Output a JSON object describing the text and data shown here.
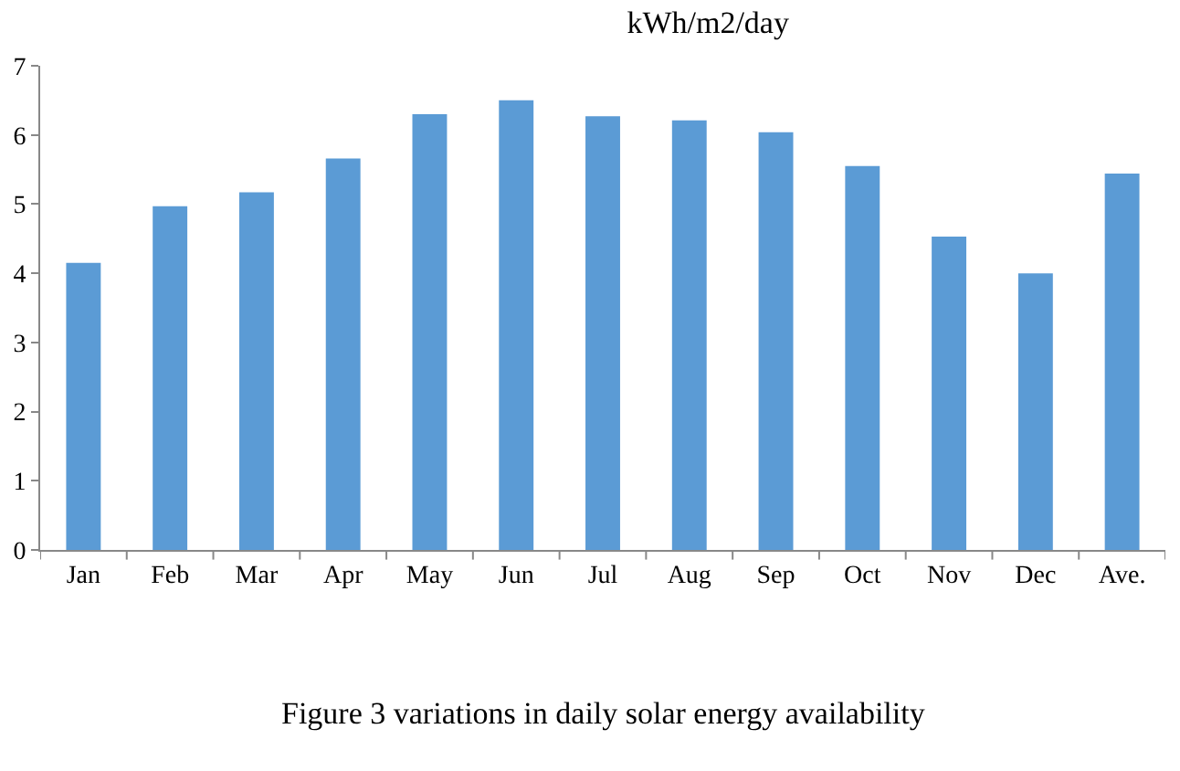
{
  "chart_data": {
    "type": "bar",
    "title": "kWh/m2/day",
    "categories": [
      "Jan",
      "Feb",
      "Mar",
      "Apr",
      "May",
      "Jun",
      "Jul",
      "Aug",
      "Sep",
      "Oct",
      "Nov",
      "Dec",
      "Ave."
    ],
    "series": [
      {
        "color": "#5b9bd5",
        "values": [
          4.15,
          4.97,
          5.17,
          5.66,
          6.3,
          6.5,
          6.27,
          6.21,
          6.04,
          5.55,
          4.53,
          4.0,
          5.44
        ]
      }
    ],
    "ylim": [
      0,
      7
    ],
    "yticks": [
      0,
      1,
      2,
      3,
      4,
      5,
      6,
      7
    ],
    "annotations": [
      "Figure 3 variations in daily solar energy availability"
    ]
  }
}
